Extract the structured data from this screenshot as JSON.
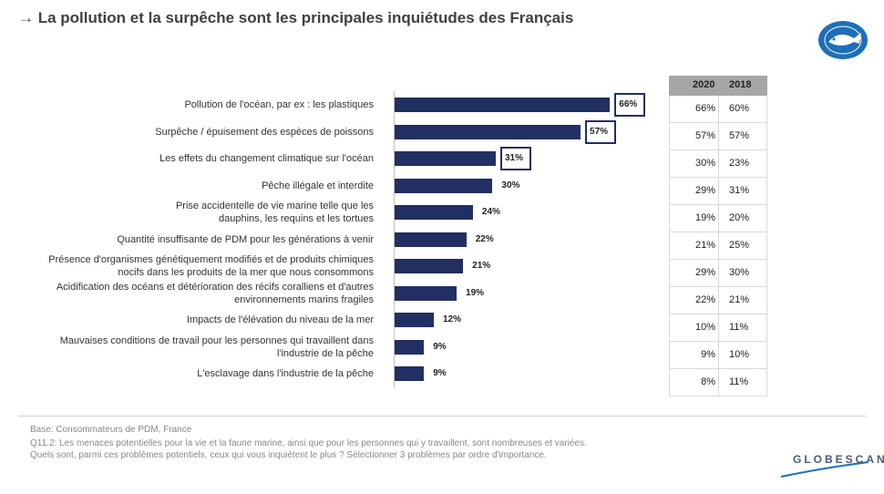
{
  "title": "→ La pollution et la surpêche sont les principales inquiétudes des Français",
  "chart_data": {
    "type": "bar",
    "orientation": "horizontal",
    "categories": [
      "Pollution de l'océan, par ex : les plastiques",
      "Surpêche / épuisement des espèces de poissons",
      "Les effets du changement climatique sur l'océan",
      "Pêche illégale et interdite",
      "Prise accidentelle de vie marine telle que les\ndauphins, les requins et les tortues",
      "Quantité insuffisante de PDM pour les générations à venir",
      "Présence d'organismes génétiquement modifiés et de produits chimiques\nnocifs  dans les produits  de la mer que nous consommons",
      "Acidification des océans et détérioration des récifs coralliens et d'autres\nenvironnements marins fragiles",
      "Impacts de l'élévation du niveau de la mer",
      "Mauvaises conditions de travail pour les personnes qui travaillent dans\nl'industrie de la pêche",
      "L'esclavage dans l'industrie de la pêche"
    ],
    "values": [
      66,
      57,
      31,
      30,
      24,
      22,
      21,
      19,
      12,
      9,
      9
    ],
    "value_labels": [
      "66%",
      "57%",
      "31%",
      "30%",
      "24%",
      "22%",
      "21%",
      "19%",
      "12%",
      "9%",
      "9%"
    ],
    "highlighted": [
      true,
      true,
      true,
      false,
      false,
      false,
      false,
      false,
      false,
      false,
      false
    ],
    "bar_color": "#222f63",
    "xlim": [
      0,
      100
    ]
  },
  "table": {
    "headers": [
      "2020",
      "2018"
    ],
    "rows": [
      [
        "66%",
        "60%"
      ],
      [
        "57%",
        "57%"
      ],
      [
        "30%",
        "23%"
      ],
      [
        "29%",
        "31%"
      ],
      [
        "19%",
        "20%"
      ],
      [
        "21%",
        "25%"
      ],
      [
        "29%",
        "30%"
      ],
      [
        "22%",
        "21%"
      ],
      [
        "10%",
        "11%"
      ],
      [
        "9%",
        "10%"
      ],
      [
        "8%",
        "11%"
      ]
    ]
  },
  "footnote": {
    "base": "Base: Consommateurs de PDM, France",
    "question_line1": "Q11.2: Les menaces potentielles pour la vie et la faune marine, ainsi que pour les personnes qui y travaillent, sont nombreuses et variées.",
    "question_line2": "Quels sont, parmi ces problèmes potentiels, ceux qui vous inquiètent le plus ? Sélectionner 3 problèmes par ordre d'importance."
  },
  "brand": {
    "globescan": "GLOBESCAN",
    "logo_icon": "msc-fish-logo-icon",
    "accent": "#1d6fb8"
  }
}
